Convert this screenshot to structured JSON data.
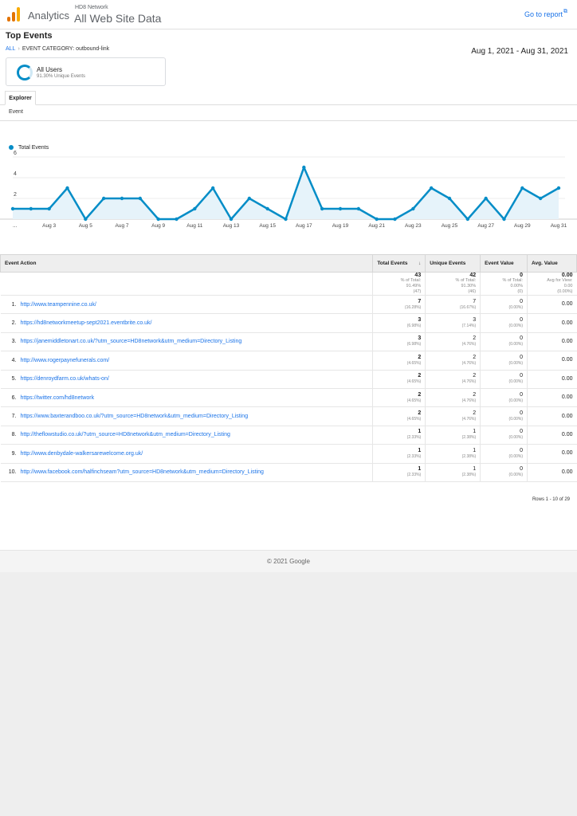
{
  "header": {
    "brand": "Analytics",
    "account": "HD8 Network",
    "property": "All Web Site Data",
    "goto_report": "Go to report",
    "goto_icon": "external-link-icon"
  },
  "report": {
    "title": "Top Events",
    "breadcrumb_all": "ALL",
    "breadcrumb_current": "EVENT CATEGORY: outbound-link",
    "date_range": "Aug 1, 2021 - Aug 31, 2021"
  },
  "segment": {
    "name": "All Users",
    "subtitle": "91.30% Unique Events"
  },
  "tabs": {
    "explorer": "Explorer",
    "dimension": "Event"
  },
  "chart_data": {
    "type": "area",
    "series": [
      {
        "name": "Total Events",
        "values": [
          1,
          1,
          1,
          3,
          0,
          2,
          2,
          2,
          0,
          0,
          1,
          3,
          0,
          2,
          1,
          0,
          5,
          1,
          1,
          1,
          0,
          0,
          1,
          3,
          2,
          0,
          2,
          0,
          3,
          2,
          3
        ]
      }
    ],
    "x_days": [
      1,
      2,
      3,
      4,
      5,
      6,
      7,
      8,
      9,
      10,
      11,
      12,
      13,
      14,
      15,
      16,
      17,
      18,
      19,
      20,
      21,
      22,
      23,
      24,
      25,
      26,
      27,
      28,
      29,
      30,
      31
    ],
    "x_tick_labels": [
      "...",
      "Aug 3",
      "Aug 5",
      "Aug 7",
      "Aug 9",
      "Aug 11",
      "Aug 13",
      "Aug 15",
      "Aug 17",
      "Aug 19",
      "Aug 21",
      "Aug 23",
      "Aug 25",
      "Aug 27",
      "Aug 29",
      "Aug 31"
    ],
    "y_ticks": [
      2,
      4,
      6
    ],
    "ylim": [
      0,
      6
    ],
    "color": "#058dc7",
    "fill": "#e6f3fa"
  },
  "table": {
    "headers": {
      "action": "Event Action",
      "total": "Total Events",
      "unique": "Unique Events",
      "value": "Event Value",
      "avg": "Avg. Value"
    },
    "totals": {
      "total": "43",
      "total_pct": "% of Total:",
      "total_pct_val": "91.49%",
      "total_abs": "(47)",
      "unique": "42",
      "unique_pct": "% of Total:",
      "unique_pct_val": "91.30%",
      "unique_abs": "(46)",
      "value": "0",
      "value_pct": "% of Total:",
      "value_pct_val": "0.00%",
      "value_abs": "(0)",
      "avg": "0.00",
      "avg_label": "Avg for View:",
      "avg_val": "0.00",
      "avg_abs": "(0.00%)"
    },
    "rows": [
      {
        "n": "1.",
        "action": "http://www.teampennine.co.uk/",
        "total": "7",
        "total_pct": "(16.28%)",
        "unique": "7",
        "unique_pct": "(16.67%)",
        "value": "0",
        "value_pct": "(0.00%)",
        "avg": "0.00"
      },
      {
        "n": "2.",
        "action": "https://hd8networkmeetup-sept2021.eventbrite.co.uk/",
        "total": "3",
        "total_pct": "(6.98%)",
        "unique": "3",
        "unique_pct": "(7.14%)",
        "value": "0",
        "value_pct": "(0.00%)",
        "avg": "0.00"
      },
      {
        "n": "3.",
        "action": "https://janemiddletonart.co.uk/?utm_source=HD8network&utm_medium=Directory_Listing",
        "total": "3",
        "total_pct": "(6.98%)",
        "unique": "2",
        "unique_pct": "(4.76%)",
        "value": "0",
        "value_pct": "(0.00%)",
        "avg": "0.00"
      },
      {
        "n": "4.",
        "action": "http://www.rogerpaynefunerals.com/",
        "total": "2",
        "total_pct": "(4.65%)",
        "unique": "2",
        "unique_pct": "(4.76%)",
        "value": "0",
        "value_pct": "(0.00%)",
        "avg": "0.00"
      },
      {
        "n": "5.",
        "action": "https://denroydfarm.co.uk/whats-on/",
        "total": "2",
        "total_pct": "(4.65%)",
        "unique": "2",
        "unique_pct": "(4.76%)",
        "value": "0",
        "value_pct": "(0.00%)",
        "avg": "0.00"
      },
      {
        "n": "6.",
        "action": "https://twitter.com/hd8network",
        "total": "2",
        "total_pct": "(4.65%)",
        "unique": "2",
        "unique_pct": "(4.76%)",
        "value": "0",
        "value_pct": "(0.00%)",
        "avg": "0.00"
      },
      {
        "n": "7.",
        "action": "https://www.baxterandboo.co.uk/?utm_source=HD8network&utm_medium=Directory_Listing",
        "total": "2",
        "total_pct": "(4.65%)",
        "unique": "2",
        "unique_pct": "(4.76%)",
        "value": "0",
        "value_pct": "(0.00%)",
        "avg": "0.00"
      },
      {
        "n": "8.",
        "action": "http://theflowstudio.co.uk/?utm_source=HD8network&utm_medium=Directory_Listing",
        "total": "1",
        "total_pct": "(2.33%)",
        "unique": "1",
        "unique_pct": "(2.38%)",
        "value": "0",
        "value_pct": "(0.00%)",
        "avg": "0.00"
      },
      {
        "n": "9.",
        "action": "http://www.denbydale-walkersarewelcome.org.uk/",
        "total": "1",
        "total_pct": "(2.33%)",
        "unique": "1",
        "unique_pct": "(2.38%)",
        "value": "0",
        "value_pct": "(0.00%)",
        "avg": "0.00"
      },
      {
        "n": "10.",
        "action": "http://www.facebook.com/halfinchseam?utm_source=HD8network&utm_medium=Directory_Listing",
        "total": "1",
        "total_pct": "(2.33%)",
        "unique": "1",
        "unique_pct": "(2.38%)",
        "value": "0",
        "value_pct": "(0.00%)",
        "avg": "0.00"
      }
    ],
    "rows_info": "Rows 1 - 10 of 29"
  },
  "footer": {
    "copyright": "© 2021 Google"
  }
}
